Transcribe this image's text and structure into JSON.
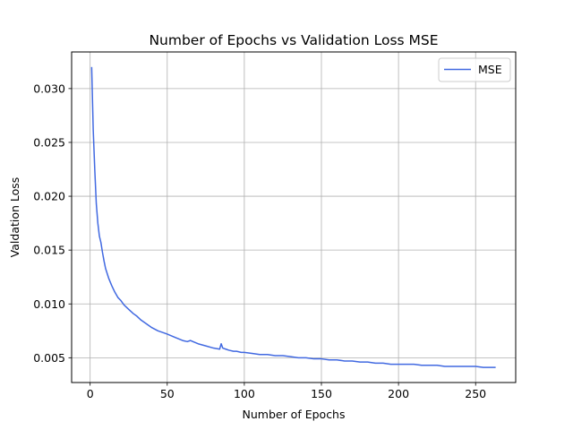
{
  "chart_data": {
    "type": "line",
    "title": "Number of Epochs vs Validation Loss MSE",
    "xlabel": "Number of Epochs",
    "ylabel": "Valdation Loss",
    "xlim": [
      -12,
      276
    ],
    "ylim": [
      0.0027,
      0.0334
    ],
    "xticks": [
      0,
      50,
      100,
      150,
      200,
      250
    ],
    "yticks": [
      0.005,
      0.01,
      0.015,
      0.02,
      0.025,
      0.03
    ],
    "xtick_labels": [
      "0",
      "50",
      "100",
      "150",
      "200",
      "250"
    ],
    "ytick_labels": [
      "0.005",
      "0.010",
      "0.015",
      "0.020",
      "0.025",
      "0.030"
    ],
    "grid": true,
    "legend_placement": "upper-right",
    "series": [
      {
        "name": "MSE",
        "color": "#4169e1",
        "x": [
          1,
          2,
          3,
          4,
          5,
          6,
          7,
          8,
          9,
          10,
          12,
          14,
          16,
          18,
          20,
          22,
          25,
          28,
          30,
          33,
          36,
          40,
          44,
          48,
          50,
          55,
          60,
          63,
          65,
          70,
          75,
          80,
          84,
          85,
          86,
          88,
          90,
          93,
          95,
          98,
          100,
          105,
          110,
          113,
          115,
          120,
          125,
          130,
          135,
          140,
          145,
          150,
          155,
          160,
          165,
          170,
          175,
          180,
          185,
          190,
          195,
          200,
          205,
          210,
          215,
          220,
          225,
          230,
          235,
          240,
          245,
          250,
          255,
          260,
          263
        ],
        "values": [
          0.032,
          0.0262,
          0.0225,
          0.0193,
          0.0175,
          0.0163,
          0.0157,
          0.0148,
          0.014,
          0.0133,
          0.0124,
          0.0117,
          0.0111,
          0.0106,
          0.0103,
          0.0099,
          0.0095,
          0.0091,
          0.0089,
          0.0085,
          0.0082,
          0.0078,
          0.0075,
          0.0073,
          0.0072,
          0.0069,
          0.0066,
          0.0065,
          0.0066,
          0.0063,
          0.0061,
          0.0059,
          0.0058,
          0.0063,
          0.0059,
          0.0058,
          0.0057,
          0.0056,
          0.0056,
          0.0055,
          0.0055,
          0.0054,
          0.0053,
          0.0053,
          0.0053,
          0.0052,
          0.0052,
          0.0051,
          0.005,
          0.005,
          0.0049,
          0.0049,
          0.0048,
          0.0048,
          0.0047,
          0.0047,
          0.0046,
          0.0046,
          0.0045,
          0.0045,
          0.0044,
          0.0044,
          0.0044,
          0.0044,
          0.0043,
          0.0043,
          0.0043,
          0.0042,
          0.0042,
          0.0042,
          0.0042,
          0.0042,
          0.0041,
          0.0041,
          0.0041
        ]
      }
    ]
  }
}
